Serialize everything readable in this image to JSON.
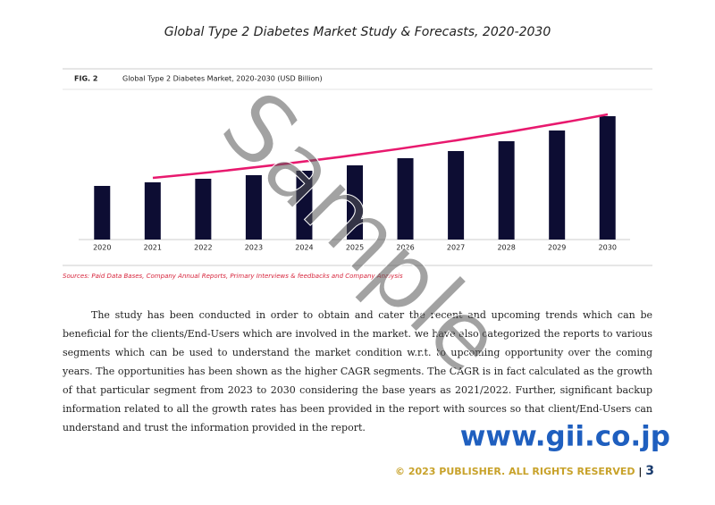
{
  "header": {
    "title": "Global Type 2 Diabetes Market Study & Forecasts, 2020-2030"
  },
  "figure_label": "FIG. 2",
  "chart_data": {
    "type": "bar",
    "title": "Global Type 2 Diabetes Market, 2020-2030 (USD Billion)",
    "categories": [
      "2020",
      "2021",
      "2022",
      "2023",
      "2024",
      "2025",
      "2026",
      "2027",
      "2028",
      "2029",
      "2030"
    ],
    "values": [
      30,
      32,
      34,
      36,
      38.5,
      41.5,
      45.5,
      49.5,
      55,
      61,
      69
    ],
    "color": "#0d0d33",
    "trend_color": "#e8196e"
  },
  "source": "Sources: Paid Data Bases, Company Annual Reports, Primary Interviews & feedbacks and Company Analysis",
  "body": "The study has been conducted in order to obtain and cater the recent and upcoming trends which can be beneficial for the clients/End-Users which are involved in the market.  we have also categorized the reports to various segments which can be used to understand the market condition w.r.t. to upcoming opportunity over the coming years. The opportunities has been shown as the higher CAGR segments. The CAGR is in fact calculated as the growth of that particular segment from 2023 to 2030 considering the base years as 2021/2022. Further, significant backup information related to all the growth rates has been provided in the report with sources so that client/End-Users can understand and trust the information provided in the report.",
  "watermark": "Sample",
  "website": "www.gii.co.jp",
  "footer": {
    "copyright": "© 2023 PUBLISHER. ALL RIGHTS RESERVED",
    "separator": "|",
    "page": 3
  }
}
